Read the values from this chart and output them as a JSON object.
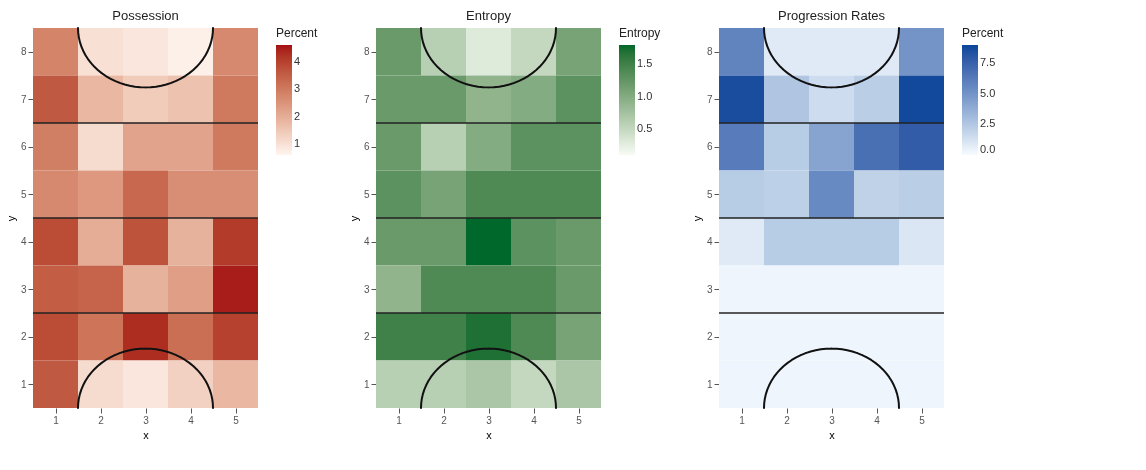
{
  "chart_data": [
    {
      "type": "heatmap",
      "title": "Possession",
      "xlabel": "x",
      "ylabel": "y",
      "legend_title": "Percent",
      "categories": [
        "1",
        "2",
        "3",
        "4",
        "5"
      ],
      "y_categories": [
        "8",
        "7",
        "6",
        "5",
        "4",
        "3",
        "2",
        "1"
      ],
      "cells": [
        [
          2.8,
          1.0,
          0.9,
          0.7,
          2.7
        ],
        [
          3.6,
          1.8,
          1.4,
          1.6,
          3.0
        ],
        [
          2.9,
          1.1,
          2.2,
          2.2,
          3.0
        ],
        [
          2.7,
          2.4,
          3.3,
          2.6,
          2.6
        ],
        [
          3.8,
          2.0,
          3.7,
          1.9,
          4.1
        ],
        [
          3.5,
          3.4,
          1.9,
          2.3,
          4.5
        ],
        [
          3.8,
          3.1,
          4.3,
          3.2,
          4.0
        ],
        [
          3.6,
          1.1,
          0.9,
          1.3,
          1.8
        ]
      ],
      "clim": [
        0.6,
        4.6
      ],
      "cticks": [
        1,
        2,
        3,
        4
      ],
      "colors": [
        "#fff5f0",
        "#a50f15"
      ]
    },
    {
      "type": "heatmap",
      "title": "Entropy",
      "xlabel": "x",
      "ylabel": "y",
      "legend_title": "Entropy",
      "categories": [
        "1",
        "2",
        "3",
        "4",
        "5"
      ],
      "y_categories": [
        "8",
        "7",
        "6",
        "5",
        "4",
        "3",
        "2",
        "1"
      ],
      "cells": [
        [
          1.2,
          0.6,
          0.3,
          0.5,
          1.1
        ],
        [
          1.2,
          1.2,
          0.9,
          1.0,
          1.3
        ],
        [
          1.2,
          0.6,
          1.0,
          1.3,
          1.3
        ],
        [
          1.3,
          1.1,
          1.4,
          1.4,
          1.4
        ],
        [
          1.2,
          1.2,
          1.8,
          1.3,
          1.2
        ],
        [
          0.9,
          1.4,
          1.4,
          1.4,
          1.2
        ],
        [
          1.5,
          1.5,
          1.7,
          1.4,
          1.1
        ],
        [
          0.6,
          0.6,
          0.7,
          0.5,
          0.7
        ]
      ],
      "clim": [
        0.1,
        1.8
      ],
      "cticks": [
        {
          "value": 0.5,
          "label": "0.5"
        },
        {
          "value": 1,
          "label": "1.0"
        },
        {
          "value": 1.5,
          "label": "1.5"
        }
      ],
      "colors": [
        "#f7fcf5",
        "#00682a"
      ]
    },
    {
      "type": "heatmap",
      "title": "Progression Rates",
      "xlabel": "x",
      "ylabel": "y",
      "legend_title": "Percent",
      "categories": [
        "1",
        "2",
        "3",
        "4",
        "5"
      ],
      "y_categories": [
        "8",
        "7",
        "6",
        "5",
        "4",
        "3",
        "2",
        "1"
      ],
      "cells": [
        [
          5.8,
          0.8,
          0.8,
          0.8,
          5.0
        ],
        [
          8.6,
          2.6,
          1.5,
          2.2,
          8.8
        ],
        [
          6.2,
          2.3,
          4.2,
          6.8,
          7.8
        ],
        [
          2.3,
          2.1,
          5.5,
          2.0,
          2.2
        ],
        [
          0.8,
          2.3,
          2.3,
          2.3,
          1.0
        ],
        [
          0.3,
          0.3,
          0.3,
          0.3,
          0.3
        ],
        [
          0.3,
          0.3,
          0.3,
          0.3,
          0.3
        ],
        [
          0.3,
          0.3,
          0.3,
          0.3,
          0.3
        ]
      ],
      "clim": [
        0,
        9
      ],
      "cticks": [
        {
          "value": 0,
          "label": "0.0"
        },
        {
          "value": 2.5,
          "label": "2.5"
        },
        {
          "value": 5,
          "label": "5.0"
        },
        {
          "value": 7.5,
          "label": "7.5"
        }
      ],
      "colors": [
        "#f7fbff",
        "#08459a"
      ]
    }
  ]
}
